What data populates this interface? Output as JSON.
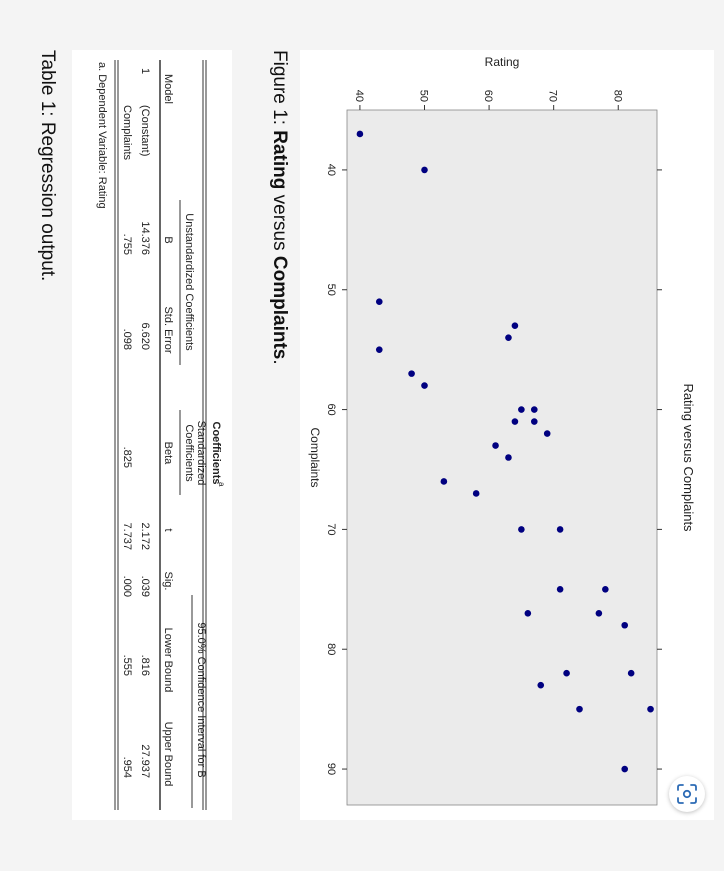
{
  "figure": {
    "caption_prefix": "Figure 1:",
    "caption_word1": "Rating",
    "caption_mid": "versus",
    "caption_word2": "Complaints",
    "caption_end": "."
  },
  "chart_data": {
    "type": "scatter",
    "title": "Rating versus Complaints",
    "xlabel": "Complaints",
    "ylabel": "Rating",
    "xlim": [
      35,
      93
    ],
    "ylim": [
      38,
      86
    ],
    "xticks": [
      40,
      50,
      60,
      70,
      80,
      90
    ],
    "yticks": [
      40,
      50,
      60,
      70,
      80
    ],
    "point_color": "#000080",
    "background": "#ebebeb",
    "points": [
      {
        "x": 37,
        "y": 40
      },
      {
        "x": 40,
        "y": 50
      },
      {
        "x": 51,
        "y": 43
      },
      {
        "x": 53,
        "y": 64
      },
      {
        "x": 54,
        "y": 63
      },
      {
        "x": 55,
        "y": 43
      },
      {
        "x": 57,
        "y": 48
      },
      {
        "x": 58,
        "y": 50
      },
      {
        "x": 60,
        "y": 65
      },
      {
        "x": 60,
        "y": 67
      },
      {
        "x": 61,
        "y": 64
      },
      {
        "x": 61,
        "y": 67
      },
      {
        "x": 62,
        "y": 69
      },
      {
        "x": 63,
        "y": 61
      },
      {
        "x": 64,
        "y": 63
      },
      {
        "x": 66,
        "y": 53
      },
      {
        "x": 67,
        "y": 58
      },
      {
        "x": 70,
        "y": 65
      },
      {
        "x": 70,
        "y": 71
      },
      {
        "x": 75,
        "y": 71
      },
      {
        "x": 75,
        "y": 78
      },
      {
        "x": 77,
        "y": 66
      },
      {
        "x": 77,
        "y": 77
      },
      {
        "x": 78,
        "y": 81
      },
      {
        "x": 82,
        "y": 72
      },
      {
        "x": 82,
        "y": 82
      },
      {
        "x": 83,
        "y": 68
      },
      {
        "x": 85,
        "y": 74
      },
      {
        "x": 85,
        "y": 85
      },
      {
        "x": 90,
        "y": 81
      }
    ]
  },
  "table": {
    "title": "Coefficients",
    "title_sup": "a",
    "header_model": "Model",
    "header_unstd": "Unstandardized Coefficients",
    "header_std_1": "Standardized",
    "header_std_2": "Coefficients",
    "header_ci": "95.0% Confidence Interval for B",
    "sub_b": "B",
    "sub_se": "Std. Error",
    "sub_beta": "Beta",
    "sub_t": "t",
    "sub_sig": "Sig.",
    "sub_lower": "Lower Bound",
    "sub_upper": "Upper Bound",
    "model_num": "1",
    "rows": [
      {
        "label": "(Constant)",
        "b": "14.376",
        "se": "6.620",
        "beta": "",
        "t": "2.172",
        "sig": ".039",
        "lower": ".816",
        "upper": "27.937"
      },
      {
        "label": "Complaints",
        "b": ".755",
        "se": ".098",
        "beta": ".825",
        "t": "7.737",
        "sig": ".000",
        "lower": ".555",
        "upper": ".954"
      }
    ],
    "footnote": "a. Dependent Variable: Rating",
    "caption": "Table 1:  Regression output."
  },
  "scan_button": {
    "icon": "scan-icon"
  }
}
